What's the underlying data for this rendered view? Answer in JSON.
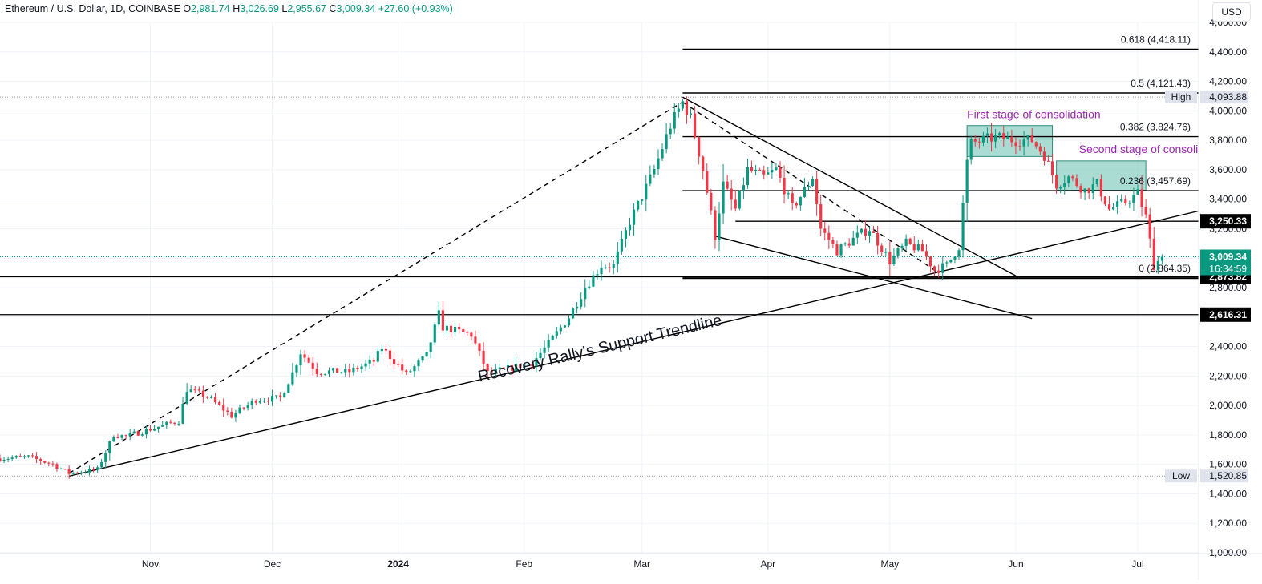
{
  "header": {
    "symbol": "Ethereum / U.S. Dollar, 1D, COINBASE",
    "o_label": "O",
    "o_value": "2,981.74",
    "h_label": "H",
    "h_value": "3,026.69",
    "l_label": "L",
    "l_value": "2,955.67",
    "c_label": "C",
    "c_value": "3,009.34",
    "change": "+27.60 (+0.93%)"
  },
  "currency_button": "USD",
  "colors": {
    "up": "#089981",
    "down": "#f23645",
    "consolidation_fill": "#8fd0c4",
    "consolidation_border": "#2e8b7a",
    "annotation_text": "#9c27b0",
    "price_label_bg": "#000000",
    "last_price_bg": "#089981"
  },
  "chart_data": {
    "type": "candlestick",
    "title": "Ethereum / U.S. Dollar, 1D, COINBASE",
    "ylim": [
      1000,
      4600
    ],
    "y_ticks": [
      1000,
      1200,
      1400,
      1600,
      1800,
      2000,
      2200,
      2400,
      2600,
      2800,
      3000,
      3200,
      3400,
      3600,
      3800,
      4000,
      4200,
      4400,
      4600
    ],
    "y_tick_labels": [
      "1,000.00",
      "1,200.00",
      "1,400.00",
      "1,600.00",
      "1,800.00",
      "2,000.00",
      "2,200.00",
      "2,400.00",
      "2,600.00",
      "2,800.00",
      "3,000.00",
      "3,200.00",
      "3,400.00",
      "3,600.00",
      "3,800.00",
      "4,000.00",
      "4,200.00",
      "4,400.00",
      "4,600.00"
    ],
    "x_range": [
      "2023-09-25",
      "2024-07-16"
    ],
    "x_ticks": [
      {
        "date": "2023-11-01",
        "label": "Nov"
      },
      {
        "date": "2023-12-01",
        "label": "Dec"
      },
      {
        "date": "2024-01-01",
        "label": "2024"
      },
      {
        "date": "2024-02-01",
        "label": "Feb"
      },
      {
        "date": "2024-03-01",
        "label": "Mar"
      },
      {
        "date": "2024-04-01",
        "label": "Apr"
      },
      {
        "date": "2024-05-01",
        "label": "May"
      },
      {
        "date": "2024-06-01",
        "label": "Jun"
      },
      {
        "date": "2024-07-01",
        "label": "Jul"
      }
    ],
    "price_anchors": [
      [
        "2023-09-25",
        1640
      ],
      [
        "2023-10-02",
        1650
      ],
      [
        "2023-10-08",
        1600
      ],
      [
        "2023-10-12",
        1540
      ],
      [
        "2023-10-19",
        1565
      ],
      [
        "2023-10-23",
        1800
      ],
      [
        "2023-10-26",
        1790
      ],
      [
        "2023-11-01",
        1840
      ],
      [
        "2023-11-08",
        1895
      ],
      [
        "2023-11-10",
        2110
      ],
      [
        "2023-11-15",
        2060
      ],
      [
        "2023-11-21",
        1930
      ],
      [
        "2023-11-27",
        2040
      ],
      [
        "2023-12-03",
        2050
      ],
      [
        "2023-12-06",
        2220
      ],
      [
        "2023-12-08",
        2360
      ],
      [
        "2023-12-12",
        2230
      ],
      [
        "2023-12-20",
        2230
      ],
      [
        "2023-12-26",
        2300
      ],
      [
        "2023-12-28",
        2390
      ],
      [
        "2024-01-03",
        2210
      ],
      [
        "2024-01-08",
        2340
      ],
      [
        "2024-01-11",
        2620
      ],
      [
        "2024-01-12",
        2530
      ],
      [
        "2024-01-19",
        2480
      ],
      [
        "2024-01-23",
        2220
      ],
      [
        "2024-01-28",
        2250
      ],
      [
        "2024-02-03",
        2290
      ],
      [
        "2024-02-07",
        2420
      ],
      [
        "2024-02-12",
        2600
      ],
      [
        "2024-02-16",
        2800
      ],
      [
        "2024-02-20",
        2950
      ],
      [
        "2024-02-23",
        2950
      ],
      [
        "2024-02-27",
        3250
      ],
      [
        "2024-03-01",
        3420
      ],
      [
        "2024-03-04",
        3600
      ],
      [
        "2024-03-08",
        3900
      ],
      [
        "2024-03-11",
        4060
      ],
      [
        "2024-03-13",
        3950
      ],
      [
        "2024-03-16",
        3600
      ],
      [
        "2024-03-19",
        3150
      ],
      [
        "2024-03-21",
        3500
      ],
      [
        "2024-03-24",
        3330
      ],
      [
        "2024-03-27",
        3600
      ],
      [
        "2024-03-31",
        3550
      ],
      [
        "2024-04-03",
        3600
      ],
      [
        "2024-04-07",
        3340
      ],
      [
        "2024-04-10",
        3460
      ],
      [
        "2024-04-12",
        3550
      ],
      [
        "2024-04-14",
        3200
      ],
      [
        "2024-04-18",
        3050
      ],
      [
        "2024-04-23",
        3150
      ],
      [
        "2024-04-26",
        3200
      ],
      [
        "2024-05-01",
        2980
      ],
      [
        "2024-05-05",
        3100
      ],
      [
        "2024-05-09",
        3050
      ],
      [
        "2024-05-12",
        2920
      ],
      [
        "2024-05-15",
        2950
      ],
      [
        "2024-05-18",
        3080
      ],
      [
        "2024-05-20",
        3650
      ],
      [
        "2024-05-21",
        3780
      ],
      [
        "2024-05-27",
        3820
      ],
      [
        "2024-06-01",
        3800
      ],
      [
        "2024-06-05",
        3800
      ],
      [
        "2024-06-08",
        3700
      ],
      [
        "2024-06-11",
        3500
      ],
      [
        "2024-06-14",
        3550
      ],
      [
        "2024-06-18",
        3460
      ],
      [
        "2024-06-21",
        3500
      ],
      [
        "2024-06-24",
        3330
      ],
      [
        "2024-06-28",
        3380
      ],
      [
        "2024-07-01",
        3440
      ],
      [
        "2024-07-03",
        3280
      ],
      [
        "2024-07-05",
        2950
      ],
      [
        "2024-07-07",
        3009
      ]
    ],
    "last_candle": {
      "open": 2981.74,
      "high": 3026.69,
      "low": 2955.67,
      "close": 3009.34
    },
    "levels": [
      {
        "name": "fib-0.618",
        "label": "0.618 (4,418.11)",
        "value": 4418.11
      },
      {
        "name": "fib-0.5",
        "label": "0.5 (4,121.43)",
        "value": 4121.43
      },
      {
        "name": "fib-0.382",
        "label": "0.382 (3,824.76)",
        "value": 3824.76
      },
      {
        "name": "fib-0.236",
        "label": "0.236 (3,457.69)",
        "value": 3457.69
      },
      {
        "name": "fib-0",
        "label": "0 (2,864.35)",
        "value": 2864.35
      }
    ],
    "high": {
      "label": "High",
      "value": 4093.88,
      "value_label": "4,093.88"
    },
    "low": {
      "label": "Low",
      "value": 1520.85,
      "value_label": "1,520.85"
    },
    "price_labels": [
      {
        "value": 3250.33,
        "label": "3,250.33"
      },
      {
        "value": 2873.82,
        "label": "2,873.82"
      },
      {
        "value": 2616.31,
        "label": "2,616.31"
      }
    ],
    "last_price": {
      "value": 3009.34,
      "label": "3,009.34",
      "countdown": "16:34:59"
    },
    "horizontal_lines": [
      {
        "from": "2024-03-24",
        "to": "2024-07-16",
        "value": 3250.33
      },
      {
        "from": "2023-09-25",
        "to": "2024-07-16",
        "value": 2873.82
      },
      {
        "from": "2023-09-25",
        "to": "2024-07-16",
        "value": 2616.31
      }
    ],
    "trendlines": [
      {
        "style": "solid",
        "from": [
          "2023-10-12",
          1520
        ],
        "to": [
          "2024-07-16",
          3320
        ]
      },
      {
        "style": "dashed",
        "from": [
          "2023-10-12",
          1540
        ],
        "to": [
          "2024-03-11",
          4060
        ]
      },
      {
        "style": "solid",
        "from": [
          "2024-03-11",
          4093
        ],
        "to": [
          "2024-06-01",
          2880
        ]
      },
      {
        "style": "dashed",
        "from": [
          "2024-03-11",
          4060
        ],
        "to": [
          "2024-05-13",
          2900
        ]
      },
      {
        "style": "solid",
        "from": [
          "2024-03-19",
          3150
        ],
        "to": [
          "2024-06-05",
          2590
        ]
      }
    ],
    "consolidation_boxes": [
      {
        "label": "First stage of consolidation",
        "from": "2024-05-20",
        "to": "2024-06-10",
        "top": 3900,
        "bottom": 3690
      },
      {
        "label": "Second stage of consolidation",
        "from": "2024-06-11",
        "to": "2024-07-03",
        "top": 3660,
        "bottom": 3460
      }
    ],
    "annotation": "Recovery Rally's Support Trendline"
  }
}
